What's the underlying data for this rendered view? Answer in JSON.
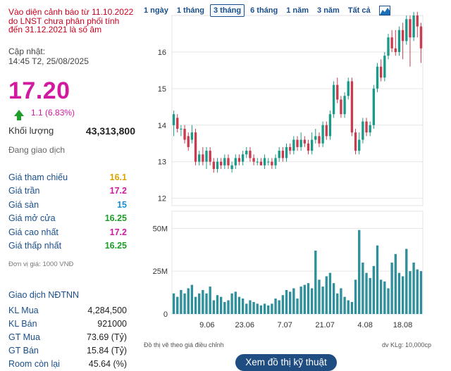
{
  "warning": "Vào diện cảnh báo từ 11.10.2022 do LNST chưa phân phối tính đến 31.12.2021 là số âm",
  "updated_label": "Cập nhật:",
  "updated_time": "14:45 T2, 25/08/2025",
  "price": "17.20",
  "change": "1.1 (6.83%)",
  "volume": {
    "label": "Khối lượng",
    "value": "43,313,800"
  },
  "trading_status": "Đang giao dịch",
  "stats": [
    {
      "label": "Giá tham chiếu",
      "value": "16.1",
      "color": "#d9a400"
    },
    {
      "label": "Giá trần",
      "value": "17.2",
      "color": "#d11aa0"
    },
    {
      "label": "Giá sàn",
      "value": "15",
      "color": "#1a8fd6"
    },
    {
      "label": "Giá mở cửa",
      "value": "16.25",
      "color": "#1e9d29"
    },
    {
      "label": "Giá cao nhất",
      "value": "17.2",
      "color": "#d11aa0"
    },
    {
      "label": "Giá thấp nhất",
      "value": "16.25",
      "color": "#1e9d29"
    }
  ],
  "unit_note": "Đơn vị giá: 1000 VNĐ",
  "foreign": {
    "title": "Giao dịch NĐTNN",
    "rows": [
      {
        "label": "KL Mua",
        "value": "4,284,500"
      },
      {
        "label": "KL Bán",
        "value": "921000"
      },
      {
        "label": "GT Mua",
        "value": "73.69 (Tỷ)"
      },
      {
        "label": "GT Bán",
        "value": "15.84 (Tỷ)"
      },
      {
        "label": "Room còn lại",
        "value": "45.64 (%)"
      }
    ]
  },
  "ranges": [
    "1 ngày",
    "1 tháng",
    "3 tháng",
    "6 tháng",
    "1 năm",
    "3 năm",
    "Tất cả"
  ],
  "active_range": "3 tháng",
  "colors": {
    "up": "#1b9a8a",
    "down": "#c83c4f",
    "volume": "#2f8f9a",
    "button": "#1f4d82"
  },
  "chart_data": {
    "type": "candlestick",
    "price_axis": {
      "ticks": [
        12,
        13,
        14,
        15,
        16
      ],
      "ylim": [
        11.8,
        17.0
      ]
    },
    "volume_axis": {
      "ticks": [
        "0",
        "25M",
        "50M"
      ],
      "ylim": [
        0,
        60
      ]
    },
    "x_ticks": [
      "9.06",
      "23.06",
      "7.07",
      "21.07",
      "4.08",
      "18.08"
    ],
    "candles": [
      [
        14.0,
        14.3,
        14.4,
        13.7
      ],
      [
        14.2,
        13.9,
        14.3,
        13.8
      ],
      [
        13.9,
        13.9,
        14.0,
        13.7
      ],
      [
        13.9,
        13.6,
        14.0,
        13.5
      ],
      [
        13.7,
        13.4,
        13.8,
        13.3
      ],
      [
        13.6,
        13.8,
        14.0,
        13.5
      ],
      [
        13.8,
        13.0,
        13.9,
        12.9
      ],
      [
        13.0,
        13.2,
        13.3,
        12.9
      ],
      [
        13.2,
        13.0,
        13.4,
        12.9
      ],
      [
        13.0,
        13.3,
        13.4,
        12.8
      ],
      [
        13.3,
        13.0,
        13.4,
        12.9
      ],
      [
        13.0,
        12.8,
        13.1,
        12.7
      ],
      [
        12.8,
        13.0,
        13.1,
        12.7
      ],
      [
        13.0,
        12.9,
        13.1,
        12.8
      ],
      [
        12.9,
        13.1,
        13.2,
        12.8
      ],
      [
        13.1,
        12.9,
        13.2,
        12.8
      ],
      [
        12.8,
        12.9,
        13.0,
        12.7
      ],
      [
        12.9,
        13.1,
        13.2,
        12.8
      ],
      [
        13.1,
        13.0,
        13.2,
        12.9
      ],
      [
        13.0,
        13.2,
        13.3,
        12.9
      ],
      [
        13.2,
        13.3,
        13.4,
        13.1
      ],
      [
        13.3,
        13.1,
        13.4,
        13.0
      ],
      [
        13.1,
        13.0,
        13.2,
        12.9
      ],
      [
        13.0,
        13.0,
        13.1,
        12.9
      ],
      [
        13.0,
        12.9,
        13.1,
        12.9
      ],
      [
        12.9,
        13.1,
        13.2,
        12.8
      ],
      [
        13.0,
        13.0,
        13.1,
        12.9
      ],
      [
        13.0,
        12.9,
        13.1,
        12.8
      ],
      [
        12.9,
        13.1,
        13.2,
        12.8
      ],
      [
        13.1,
        13.3,
        13.4,
        13.0
      ],
      [
        13.3,
        13.1,
        13.4,
        13.0
      ],
      [
        13.1,
        13.4,
        13.5,
        13.0
      ],
      [
        13.4,
        13.3,
        13.5,
        13.2
      ],
      [
        13.3,
        13.6,
        13.7,
        13.2
      ],
      [
        13.6,
        13.4,
        13.7,
        13.3
      ],
      [
        13.4,
        13.6,
        13.8,
        13.3
      ],
      [
        13.6,
        13.5,
        13.7,
        13.4
      ],
      [
        13.5,
        13.3,
        13.6,
        13.2
      ],
      [
        13.3,
        13.6,
        13.8,
        13.2
      ],
      [
        13.6,
        13.7,
        13.9,
        13.5
      ],
      [
        13.7,
        13.5,
        13.8,
        13.4
      ],
      [
        13.5,
        14.0,
        14.1,
        13.4
      ],
      [
        14.0,
        13.7,
        14.1,
        13.6
      ],
      [
        13.7,
        14.3,
        14.4,
        13.6
      ],
      [
        14.3,
        15.1,
        15.2,
        14.2
      ],
      [
        15.1,
        14.7,
        15.3,
        14.6
      ],
      [
        14.7,
        14.3,
        14.8,
        14.2
      ],
      [
        14.3,
        14.8,
        14.9,
        14.2
      ],
      [
        14.8,
        15.2,
        15.3,
        14.7
      ],
      [
        15.2,
        13.8,
        15.3,
        13.7
      ],
      [
        13.8,
        13.3,
        13.9,
        13.2
      ],
      [
        13.3,
        13.6,
        13.8,
        13.2
      ],
      [
        13.6,
        14.1,
        14.2,
        13.5
      ],
      [
        14.1,
        13.8,
        14.2,
        13.7
      ],
      [
        13.8,
        14.0,
        14.1,
        13.7
      ],
      [
        14.0,
        15.0,
        15.1,
        13.9
      ],
      [
        15.0,
        15.6,
        15.7,
        14.9
      ],
      [
        15.6,
        15.3,
        15.8,
        15.2
      ],
      [
        15.3,
        15.9,
        16.0,
        15.2
      ],
      [
        15.9,
        16.4,
        16.5,
        15.8
      ],
      [
        16.4,
        16.1,
        16.6,
        16.0
      ],
      [
        16.1,
        16.0,
        16.6,
        15.9
      ],
      [
        16.0,
        16.6,
        16.7,
        15.9
      ],
      [
        16.6,
        16.3,
        16.8,
        15.8
      ],
      [
        16.3,
        16.9,
        17.0,
        16.2
      ],
      [
        16.9,
        16.4,
        17.0,
        15.6
      ],
      [
        16.4,
        17.0,
        17.1,
        16.3
      ],
      [
        17.0,
        16.7,
        17.1,
        16.4
      ],
      [
        16.7,
        16.1,
        16.8,
        15.7
      ]
    ],
    "volumes": [
      12,
      10,
      14,
      12,
      15,
      17,
      10,
      12,
      14,
      12,
      16,
      8,
      11,
      10,
      7,
      8,
      12,
      13,
      10,
      9,
      6,
      8,
      7,
      6,
      5,
      6,
      5,
      6,
      9,
      8,
      11,
      14,
      13,
      15,
      9,
      16,
      17,
      18,
      15,
      37,
      20,
      16,
      22,
      24,
      18,
      12,
      15,
      10,
      8,
      7,
      20,
      49,
      30,
      24,
      21,
      28,
      40,
      20,
      19,
      15,
      30,
      35,
      24,
      22,
      38,
      25,
      30,
      26,
      25
    ]
  },
  "chart_note": "Đồ thị vẽ theo giá điều chỉnh",
  "volume_unit_note": "dv KLg: 10,000cp",
  "ta_button": "Xem đồ thị kỹ thuật"
}
